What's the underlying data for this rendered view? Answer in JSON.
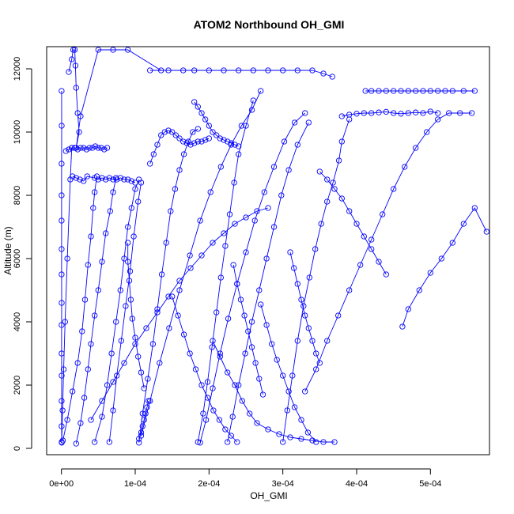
{
  "chart_data": {
    "type": "scatter",
    "title": "ATOM2 Northbound OH_GMI",
    "xlabel": "OH_GMI",
    "ylabel": "Altitude (m)",
    "xlim": [
      -2e-05,
      0.00058
    ],
    "ylim": [
      -200,
      12700
    ],
    "x_ticks": [
      0,
      0.0001,
      0.0002,
      0.0003,
      0.0004,
      0.0005
    ],
    "x_tick_labels": [
      "0e+00",
      "1e-04",
      "2e-04",
      "3e-04",
      "4e-04",
      "5e-04"
    ],
    "y_ticks": [
      0,
      2000,
      4000,
      6000,
      8000,
      10000,
      12000
    ],
    "y_tick_labels": [
      "0",
      "2000",
      "4000",
      "6000",
      "8000",
      "10000",
      "12000"
    ],
    "grid": false,
    "legend": "none",
    "color": "#0000ff",
    "marker": "open-circle",
    "connected": true,
    "series": [
      {
        "x": [
          5e-07,
          3e-07,
          2e-07,
          4e-07,
          3e-07,
          2e-07,
          4e-07,
          2e-07,
          3e-07,
          2e-07,
          3e-07,
          2e-07,
          4e-07,
          3e-07
        ],
        "y": [
          180,
          700,
          1500,
          2300,
          3000,
          3900,
          4600,
          5500,
          6300,
          7200,
          8000,
          9000,
          10200,
          11300
        ]
      },
      {
        "x": [
          4e-07,
          1.5e-06,
          3e-06,
          5e-06,
          8e-06,
          1.2e-05,
          1.4e-05
        ],
        "y": [
          200,
          1200,
          2500,
          4000,
          6000,
          8500,
          9500
        ]
      },
      {
        "x": [
          1e-05,
          1.4e-05,
          1.6e-05,
          1.8e-05,
          1.9e-05,
          2e-05,
          2.2e-05,
          2.4e-05,
          2e-05,
          2.6e-05,
          5e-05,
          7e-05,
          9e-05,
          0.000135
        ],
        "y": [
          11900,
          12300,
          12600,
          12600,
          12100,
          11400,
          10600,
          10000,
          9500,
          10500,
          12600,
          12600,
          12600,
          11950
        ]
      },
      {
        "x": [
          0.00012,
          0.000145,
          0.000165,
          0.00018,
          0.0002,
          0.00022,
          0.00024,
          0.00026,
          0.00028,
          0.0003,
          0.00032,
          0.00034,
          0.000355,
          0.000367
        ],
        "y": [
          11950,
          11950,
          11950,
          11950,
          11950,
          11950,
          11950,
          11950,
          11950,
          11950,
          11950,
          11950,
          11850,
          11750
        ]
      },
      {
        "x": [
          2e-06,
          8e-06,
          1.5e-05,
          2.2e-05,
          2.8e-05,
          3.2e-05,
          3.6e-05,
          4e-05,
          4.3e-05,
          4.5e-05,
          4.8e-05
        ],
        "y": [
          250,
          900,
          1800,
          2700,
          3700,
          4700,
          5800,
          6700,
          7600,
          8100,
          8600
        ]
      },
      {
        "x": [
          2e-05,
          2.6e-05,
          3.1e-05,
          3.6e-05,
          4e-05,
          4.5e-05,
          5e-05,
          5.5e-05,
          6e-05,
          6.6e-05,
          7e-05,
          7.4e-05
        ],
        "y": [
          150,
          800,
          1600,
          2500,
          3300,
          4200,
          5000,
          5900,
          6800,
          7500,
          8100,
          8550
        ]
      },
      {
        "x": [
          4.5e-05,
          5.5e-05,
          6.2e-05,
          6.8e-05,
          7.4e-05,
          8e-05,
          8.5e-05,
          9e-05,
          9.5e-05,
          0.0001,
          0.000105
        ],
        "y": [
          200,
          1000,
          2000,
          3000,
          4000,
          5000,
          6000,
          7000,
          7600,
          8200,
          8500
        ]
      },
      {
        "x": [
          6.5e-05,
          7e-05,
          7.5e-05,
          8.1e-05,
          8.7e-05,
          9.3e-05,
          9.8e-05,
          0.000104,
          0.000108
        ],
        "y": [
          200,
          1200,
          2300,
          3400,
          4500,
          5600,
          6700,
          7800,
          8400
        ]
      },
      {
        "x": [
          0.000105,
          0.00011,
          0.000117,
          0.000124,
          0.00013,
          0.000136,
          0.000142,
          0.000148,
          0.000154,
          0.00016,
          0.000166,
          0.000172,
          0.000178,
          0.000185
        ],
        "y": [
          180,
          1100,
          2200,
          3300,
          4400,
          5500,
          6500,
          7500,
          8200,
          8800,
          9300,
          9700,
          10000,
          10100
        ]
      },
      {
        "x": [
          0.000108,
          0.00012,
          0.000133,
          0.000146,
          0.00016,
          0.000174,
          0.000188,
          0.000202,
          0.000216,
          0.00023,
          0.000244,
          0.000258,
          0.00027
        ],
        "y": [
          400,
          1500,
          2700,
          3800,
          5000,
          6100,
          7200,
          8100,
          8900,
          9600,
          10200,
          10700,
          11300
        ]
      },
      {
        "x": [
          0.000185,
          0.000192,
          0.000198,
          0.000204,
          0.00021,
          0.000216,
          0.000222,
          0.000228,
          0.000234,
          0.00024,
          0.00025,
          0.00026
        ],
        "y": [
          200,
          1100,
          2100,
          3200,
          4300,
          5400,
          6400,
          7400,
          8400,
          9300,
          10200,
          11000
        ]
      },
      {
        "x": [
          0.000188,
          0.000196,
          0.000205,
          0.000215,
          0.000226,
          0.000238,
          0.00025,
          0.000262,
          0.000275,
          0.000288,
          0.000302,
          0.000316,
          0.00033
        ],
        "y": [
          180,
          900,
          1900,
          3000,
          4100,
          5200,
          6200,
          7200,
          8100,
          8900,
          9700,
          10300,
          10600
        ]
      },
      {
        "x": [
          0.000225,
          0.000232,
          0.00024,
          0.000249,
          0.000258,
          0.000268,
          0.000278,
          0.000288,
          0.000298,
          0.000308,
          0.00032,
          0.000335
        ],
        "y": [
          200,
          1000,
          2000,
          3000,
          4000,
          5000,
          6000,
          7000,
          8000,
          8800,
          9600,
          10300
        ]
      },
      {
        "x": [
          0.0003,
          0.000306,
          0.000313,
          0.00032,
          0.000328,
          0.000336,
          0.000344,
          0.000352,
          0.00036,
          0.000368,
          0.000376,
          0.00038,
          0.00039
        ],
        "y": [
          200,
          1200,
          2300,
          3400,
          4500,
          5400,
          6300,
          7100,
          7800,
          8400,
          9100,
          9700,
          10400
        ]
      },
      {
        "x": [
          0.00033,
          0.000345,
          0.00036,
          0.000375,
          0.00039,
          0.000405,
          0.00042,
          0.000435,
          0.00045,
          0.000465,
          0.00048,
          0.000495,
          0.00051,
          0.000525,
          0.00054,
          0.000556
        ],
        "y": [
          1800,
          2500,
          3400,
          4200,
          5000,
          5800,
          6600,
          7400,
          8200,
          8900,
          9500,
          10000,
          10400,
          10600,
          10600,
          10600
        ]
      },
      {
        "x": [
          0.000462,
          0.00047,
          0.000485,
          0.0005,
          0.000515,
          0.00053,
          0.000545,
          0.00056,
          0.000576
        ],
        "y": [
          3850,
          4400,
          5000,
          5550,
          6000,
          6500,
          7100,
          7600,
          6850
        ]
      },
      {
        "x": [
          0.000412,
          0.00042,
          0.00043,
          0.00044,
          0.00045,
          0.00046,
          0.00047,
          0.00048,
          0.00049,
          0.0005,
          0.00051,
          0.00052,
          0.00053,
          0.000545,
          0.00056
        ],
        "y": [
          11300,
          11300,
          11300,
          11300,
          11300,
          11300,
          11300,
          11300,
          11300,
          11300,
          11300,
          11300,
          11300,
          11300,
          11300
        ]
      },
      {
        "x": [
          0.00038,
          0.00039,
          0.0004,
          0.00041,
          0.00042,
          0.00043,
          0.00044,
          0.00045,
          0.00046,
          0.00047,
          0.00048,
          0.00049,
          0.0005,
          0.00051
        ],
        "y": [
          10500,
          10550,
          10580,
          10600,
          10600,
          10620,
          10640,
          10600,
          10580,
          10600,
          10620,
          10600,
          10650,
          10600
        ]
      },
      {
        "x": [
          0.00027,
          0.000278,
          0.000285,
          0.000292,
          0.0003,
          0.000308,
          0.000316,
          0.000325,
          0.000334,
          0.000345
        ],
        "y": [
          4550,
          3900,
          3300,
          2800,
          2300,
          1800,
          1300,
          900,
          500,
          200
        ]
      },
      {
        "x": [
          0.000205,
          0.000215,
          0.000225,
          0.000235,
          0.000245,
          0.000255,
          0.000265,
          0.00028,
          0.000295,
          0.00031,
          0.000325,
          0.00034,
          0.000355,
          0.00037
        ],
        "y": [
          3400,
          2900,
          2400,
          2000,
          1500,
          1100,
          800,
          600,
          450,
          350,
          300,
          250,
          200,
          200
        ]
      },
      {
        "x": [
          0.00015,
          0.000158,
          0.000166,
          0.000174,
          0.000182,
          0.00019,
          0.000198,
          0.000206,
          0.000214,
          0.000222,
          0.00023,
          0.000238
        ],
        "y": [
          4800,
          4200,
          3600,
          3000,
          2500,
          2000,
          1600,
          1200,
          900,
          600,
          400,
          200
        ]
      },
      {
        "x": [
          4e-05,
          5.5e-05,
          7e-05,
          8.5e-05,
          0.0001,
          0.000115,
          0.00013,
          0.000145,
          0.00016,
          0.000175,
          0.00019,
          0.000205,
          0.00022,
          0.000235,
          0.00025,
          0.000265,
          0.00028
        ],
        "y": [
          900,
          1500,
          2100,
          2700,
          3300,
          3800,
          4300,
          4800,
          5300,
          5700,
          6100,
          6500,
          6800,
          7100,
          7300,
          7500,
          7600
        ]
      },
      {
        "x": [
          6e-06,
          1e-05,
          1.4e-05,
          1.8e-05,
          2.2e-05,
          2.6e-05,
          3e-05,
          3.4e-05,
          3.8e-05,
          4.2e-05,
          4.6e-05,
          5e-05,
          5.4e-05,
          5.8e-05,
          6.2e-05
        ],
        "y": [
          9400,
          9450,
          9500,
          9500,
          9450,
          9500,
          9500,
          9450,
          9500,
          9500,
          9550,
          9500,
          9500,
          9450,
          9500
        ]
      },
      {
        "x": [
          1.5e-05,
          2e-05,
          2.5e-05,
          3e-05,
          3.5e-05,
          4.5e-05,
          5e-05,
          5.5e-05,
          6e-05,
          6.5e-05,
          7e-05,
          7.5e-05,
          8e-05,
          8.5e-05,
          9e-05,
          9.5e-05,
          0.0001
        ],
        "y": [
          8600,
          8550,
          8500,
          8450,
          8600,
          8550,
          8500,
          8550,
          8500,
          8550,
          8500,
          8500,
          8550,
          8500,
          8500,
          8450,
          8400
        ]
      },
      {
        "x": [
          0.00018,
          0.000185,
          0.00019,
          0.000195,
          0.0002,
          0.000205,
          0.00021,
          0.000215,
          0.00022,
          0.000225,
          0.00023,
          0.000235,
          0.00024
        ],
        "y": [
          10950,
          10800,
          10600,
          10400,
          10200,
          10000,
          9900,
          9800,
          9750,
          9700,
          9650,
          9600,
          9550
        ]
      },
      {
        "x": [
          0.00012,
          0.000125,
          0.00013,
          0.000135,
          0.00014,
          0.000145,
          0.00015,
          0.000155,
          0.00016,
          0.000165,
          0.00017,
          0.000175,
          0.00018,
          0.000185,
          0.00019,
          0.000195,
          0.0002
        ],
        "y": [
          9000,
          9300,
          9600,
          9900,
          10000,
          10050,
          10000,
          9900,
          9800,
          9700,
          9650,
          9600,
          9650,
          9700,
          9700,
          9750,
          9800
        ]
      },
      {
        "x": [
          0.00035,
          0.00036,
          0.00037,
          0.00038,
          0.00039,
          0.0004,
          0.00041,
          0.00042,
          0.00043,
          0.00044
        ],
        "y": [
          8750,
          8500,
          8200,
          7900,
          7500,
          7100,
          6700,
          6300,
          5900,
          5500
        ]
      },
      {
        "x": [
          0.000233,
          0.000238,
          0.000243,
          0.000248,
          0.000253,
          0.000258,
          0.000263,
          0.000268,
          0.000273
        ],
        "y": [
          5800,
          5200,
          4700,
          4200,
          3700,
          3200,
          2700,
          2200,
          1700
        ]
      },
      {
        "x": [
          0.00031,
          0.000315,
          0.00032,
          0.000325,
          0.00033,
          0.000335,
          0.00034,
          0.000345,
          0.00035
        ],
        "y": [
          6200,
          5700,
          5200,
          4700,
          4200,
          3800,
          3400,
          3000,
          2700
        ]
      },
      {
        "x": [
          9e-05,
          9e-05,
          9.2e-05,
          9.4e-05,
          9.6e-05,
          0.0001,
          0.000104,
          0.000108,
          0.000112
        ],
        "y": [
          6500,
          5900,
          5300,
          4700,
          4100,
          3500,
          2900,
          2400,
          1900
        ]
      },
      {
        "x": [
          0.000105,
          0.000108,
          0.00011,
          0.000112,
          0.000114,
          0.000116,
          0.000118
        ],
        "y": [
          300,
          500,
          700,
          900,
          1100,
          1300,
          1500
        ]
      }
    ]
  }
}
